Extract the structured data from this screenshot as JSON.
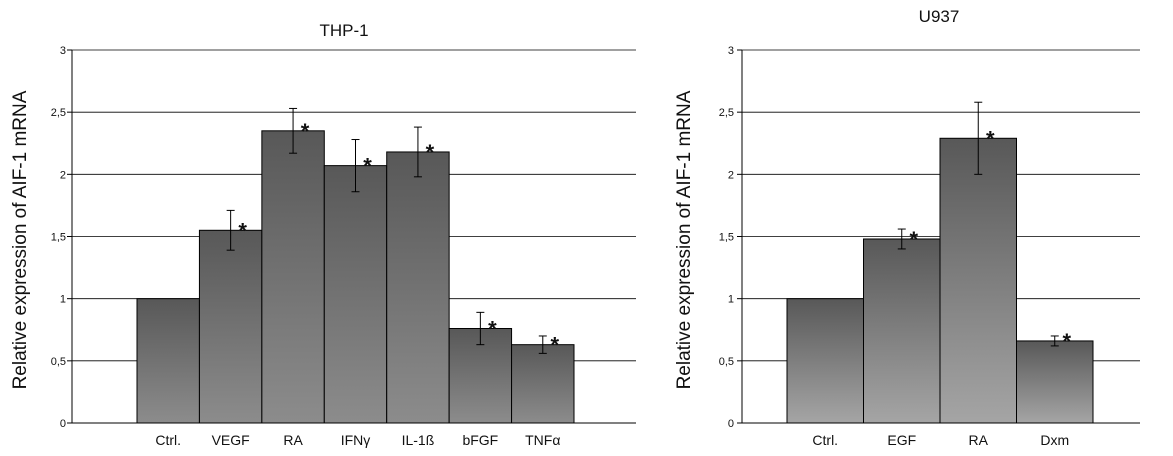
{
  "chart_data": [
    {
      "type": "bar",
      "title": "THP-1",
      "ylabel": "Relative expression of AIF-1 mRNA",
      "xlabel": "",
      "ylim": [
        0,
        3
      ],
      "yticks": [
        "0",
        "0,5",
        "1",
        "1,5",
        "2",
        "2,5",
        "3"
      ],
      "grid": true,
      "categories": [
        "Ctrl.",
        "VEGF",
        "RA",
        "IFNγ",
        "IL-1ß",
        "bFGF",
        "TNFα"
      ],
      "values": [
        1.0,
        1.55,
        2.35,
        2.07,
        2.18,
        0.76,
        0.63
      ],
      "error": [
        null,
        0.16,
        0.18,
        0.21,
        0.2,
        0.13,
        0.07
      ],
      "significant": [
        false,
        true,
        true,
        true,
        true,
        true,
        true
      ],
      "significance_marker": "*",
      "bar_color_top": "#585858",
      "bar_color_bottom": "#8c8c8c"
    },
    {
      "type": "bar",
      "title": "U937",
      "ylabel": "Relative expression of AIF-1 mRNA",
      "xlabel": "",
      "ylim": [
        0,
        3
      ],
      "yticks": [
        "0",
        "0,5",
        "1",
        "1,5",
        "2",
        "2,5",
        "3"
      ],
      "grid": true,
      "categories": [
        "Ctrl.",
        "EGF",
        "RA",
        "Dxm"
      ],
      "values": [
        1.0,
        1.48,
        2.29,
        0.66
      ],
      "error": [
        null,
        0.08,
        0.29,
        0.04
      ],
      "significant": [
        false,
        true,
        true,
        true
      ],
      "significance_marker": "*",
      "bar_color_top": "#585858",
      "bar_color_bottom": "#a5a5a5"
    }
  ]
}
